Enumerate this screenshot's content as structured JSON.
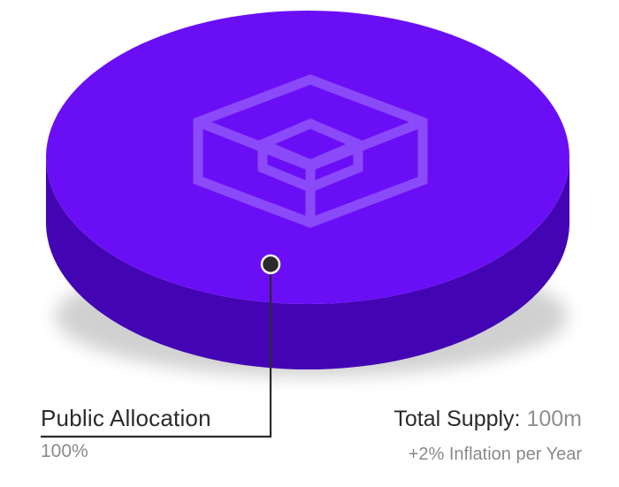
{
  "chart_data": {
    "type": "pie",
    "slices": [
      {
        "label": "Public Allocation",
        "value": 100,
        "display": "100%"
      }
    ],
    "colors": {
      "top": "#6a0ff5",
      "side": "#4305b4",
      "icon": "#8a4af9",
      "leader": "#2b2b2b"
    },
    "icon": "cube-icon"
  },
  "supply": {
    "label": "Total Supply:",
    "value": "100m",
    "inflation": "+2% Inflation per Year"
  }
}
